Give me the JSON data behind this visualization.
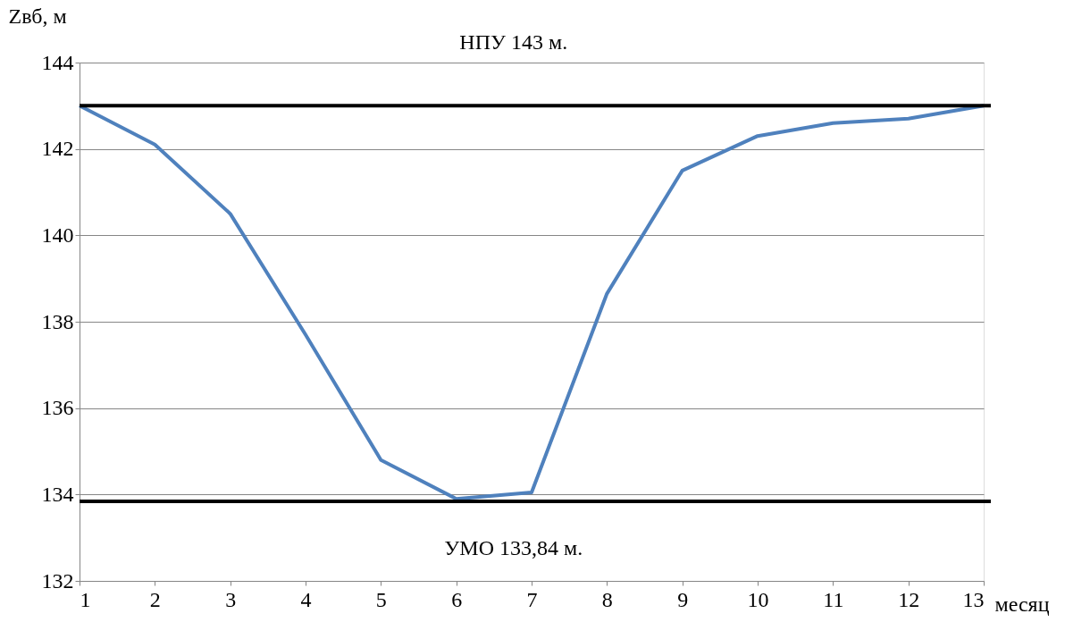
{
  "chart_data": {
    "type": "line",
    "xlabel": "месяц",
    "ylabel": "Zвб, м",
    "x": [
      1,
      2,
      3,
      4,
      5,
      6,
      7,
      8,
      9,
      10,
      11,
      12,
      13
    ],
    "series": [
      {
        "color": "#4f81bd",
        "values": [
          143.0,
          142.1,
          140.5,
          137.7,
          134.8,
          133.9,
          134.05,
          138.65,
          141.5,
          142.3,
          142.6,
          142.7,
          143.0
        ]
      }
    ],
    "xlim": [
      1,
      13
    ],
    "xticks": [
      1,
      2,
      3,
      4,
      5,
      6,
      7,
      8,
      9,
      10,
      11,
      12,
      13
    ],
    "ylim": [
      132,
      144
    ],
    "yticks": [
      132,
      134,
      136,
      138,
      140,
      142,
      144
    ],
    "grid": "y",
    "marker": "none",
    "line_style": "solid",
    "ref_lines": [
      {
        "axis": "y",
        "value": 143,
        "label": "НПУ 143 м.",
        "color": "#000000"
      },
      {
        "axis": "y",
        "value": 133.84,
        "label": "УМО 133,84 м.",
        "color": "#000000"
      }
    ]
  }
}
